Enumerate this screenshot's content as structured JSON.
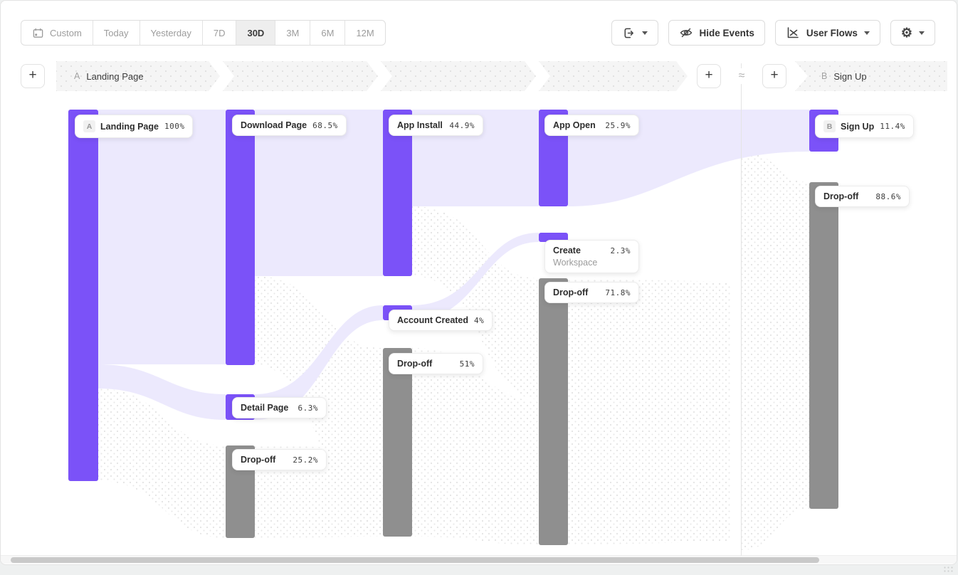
{
  "toolbar": {
    "date_ranges": [
      {
        "label": "Custom",
        "icon": "calendar",
        "selected": false
      },
      {
        "label": "Today",
        "selected": false
      },
      {
        "label": "Yesterday",
        "selected": false
      },
      {
        "label": "7D",
        "selected": false
      },
      {
        "label": "30D",
        "selected": true
      },
      {
        "label": "3M",
        "selected": false
      },
      {
        "label": "6M",
        "selected": false
      },
      {
        "label": "12M",
        "selected": false
      }
    ],
    "hide_events_label": "Hide Events",
    "view_selector_label": "User Flows"
  },
  "header": {
    "add_label": "+",
    "approx_symbol": "≈",
    "flow_a": {
      "badge": "A",
      "label": "Landing Page"
    },
    "flow_b": {
      "badge": "B",
      "label": "Sign Up"
    }
  },
  "chart_data": {
    "type": "sankey",
    "title": "User Flows",
    "selected_date_range": "30D",
    "start_event": "Landing Page",
    "compare_event": "Sign Up",
    "colors": {
      "event": "#7B52F8",
      "event_flow": "#ECE9FD",
      "dropoff": "#8F8F8F"
    },
    "nodes": [
      {
        "id": "landing",
        "badge": "A",
        "name": "Landing Page",
        "pct": "100%",
        "value": 100,
        "kind": "event",
        "column": 0
      },
      {
        "id": "download",
        "name": "Download Page",
        "pct": "68.5%",
        "value": 68.5,
        "kind": "event",
        "column": 1
      },
      {
        "id": "detail",
        "name": "Detail Page",
        "pct": "6.3%",
        "value": 6.3,
        "kind": "event",
        "column": 1
      },
      {
        "id": "dropoff1",
        "name": "Drop-off",
        "pct": "25.2%",
        "value": 25.2,
        "kind": "dropoff",
        "column": 1
      },
      {
        "id": "install",
        "name": "App Install",
        "pct": "44.9%",
        "value": 44.9,
        "kind": "event",
        "column": 2
      },
      {
        "id": "account",
        "name": "Account Created",
        "pct": "4%",
        "value": 4,
        "kind": "event",
        "column": 2
      },
      {
        "id": "dropoff2",
        "name": "Drop-off",
        "pct": "51%",
        "value": 51,
        "kind": "dropoff",
        "column": 2
      },
      {
        "id": "open",
        "name": "App Open",
        "pct": "25.9%",
        "value": 25.9,
        "kind": "event",
        "column": 3
      },
      {
        "id": "create",
        "name": "Create Workspace",
        "pct": "2.3%",
        "value": 2.3,
        "kind": "event",
        "column": 3,
        "wrap": true
      },
      {
        "id": "dropoff3",
        "name": "Drop-off",
        "pct": "71.8%",
        "value": 71.8,
        "kind": "dropoff",
        "column": 3
      },
      {
        "id": "signup",
        "badge": "B",
        "name": "Sign Up",
        "pct": "11.4%",
        "value": 11.4,
        "kind": "event",
        "column": 4
      },
      {
        "id": "dropoff4",
        "name": "Drop-off",
        "pct": "88.6%",
        "value": 88.6,
        "kind": "dropoff",
        "column": 4
      }
    ]
  }
}
